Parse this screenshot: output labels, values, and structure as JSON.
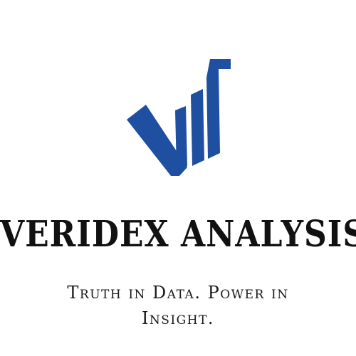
{
  "brand": {
    "name": "VERIDEX ANALYSIS",
    "tagline_line1": "Truth in Data. Power in",
    "tagline_line2": "Insight.",
    "logo_icon": "checkmark-bar-chart-logo-icon",
    "accent_color": "#1f4fa0"
  }
}
